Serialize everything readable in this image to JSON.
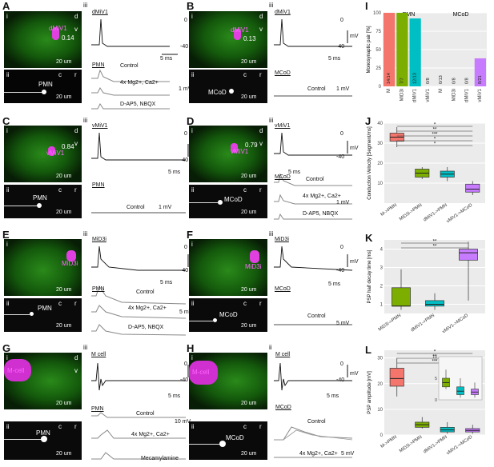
{
  "panels": {
    "A": {
      "letter": "A",
      "neuron": "dMiV1",
      "value": "0.14",
      "target": "PMN",
      "recording": "dMiV1",
      "trace_labels": [
        "Control",
        "4x Mg2+, Ca2+",
        "D-AP5, NBQX"
      ]
    },
    "B": {
      "letter": "B",
      "neuron": "dMiV1",
      "value": "0.13",
      "target": "MCoD",
      "recording": "dMiV1",
      "trace_labels": [
        "Control"
      ]
    },
    "C": {
      "letter": "C",
      "neuron": "vMiV1",
      "value": "0.84",
      "target": "PMN",
      "recording": "vMiV1",
      "trace_labels": [
        "Control"
      ]
    },
    "D": {
      "letter": "D",
      "neuron": "vMiV1",
      "value": "0.79",
      "target": "MCoD",
      "recording": "vMiV1",
      "trace_labels": [
        "Control",
        "4x Mg2+, Ca2+",
        "D-AP5, NBQX"
      ]
    },
    "E": {
      "letter": "E",
      "neuron": "MiD3i",
      "target": "PMN",
      "recording": "MiD3i",
      "trace_labels": [
        "Control",
        "4x Mg2+, Ca2+",
        "D-AP5, NBQX"
      ]
    },
    "F": {
      "letter": "F",
      "neuron": "MiD3i",
      "target": "MCoD",
      "recording": "MiD3i",
      "trace_labels": [
        "Control"
      ]
    },
    "G": {
      "letter": "G",
      "neuron": "M-cell",
      "target": "PMN",
      "recording": "M cell",
      "trace_labels": [
        "Control",
        "4x Mg2+, Ca2+",
        "Mecamylamine"
      ]
    },
    "H": {
      "letter": "H",
      "neuron": "M-cell",
      "target": "MCoD",
      "recording": "M cell",
      "trace_labels": [
        "Control",
        "4x Mg2+, Ca2+"
      ]
    }
  },
  "sublabels": {
    "i": "i",
    "ii": "ii",
    "iii": "iii"
  },
  "scale_text": {
    "um": "20 um",
    "mv": "mV",
    "ms5": "5 ms",
    "mv1": "1 mV",
    "mv5": "5 mV",
    "mv10": "10 mV",
    "zero": "0",
    "minus40": "-40",
    "axis_d": "d",
    "axis_v": "v",
    "axis_c": "c",
    "axis_r": "r"
  },
  "chart_data": [
    {
      "id": "I",
      "type": "bar",
      "ylabel": "Monosynaptic pair [%]",
      "ylim": [
        0,
        100
      ],
      "yticks": [
        0,
        25,
        50,
        75,
        100
      ],
      "group_labels": [
        "PMN",
        "MCoD"
      ],
      "categories": [
        "M",
        "MiD3i",
        "dMiV1",
        "vMiV1",
        "M",
        "MiD3i",
        "dMiV1",
        "vMiV1"
      ],
      "values": [
        100,
        100,
        92.3,
        0,
        0,
        0,
        0,
        38.1
      ],
      "bar_labels": [
        "14/14",
        "7/7",
        "12/13",
        "0/8",
        "0/13",
        "0/8",
        "0/8",
        "8/21"
      ],
      "colors": [
        "#f4756c",
        "#7cae00",
        "#00bfc4",
        "#00bfc4",
        "#f4756c",
        "#7cae00",
        "#c77cff",
        "#c77cff"
      ]
    },
    {
      "id": "J",
      "type": "box",
      "ylabel": "Conduction Velocity [Segment/ms]",
      "ylim": [
        0,
        40
      ],
      "yticks": [
        10,
        20,
        30,
        40
      ],
      "categories": [
        "M->PMN",
        "MiD3i->PMN",
        "dMiV1->PMN",
        "vMiV1->MCoD"
      ],
      "boxes": [
        {
          "min": 28,
          "q1": 31,
          "median": 33,
          "q3": 35,
          "max": 38,
          "color": "#f4756c"
        },
        {
          "min": 12,
          "q1": 13,
          "median": 15,
          "q3": 17,
          "max": 18,
          "color": "#7cae00"
        },
        {
          "min": 11,
          "q1": 13,
          "median": 14.5,
          "q3": 16,
          "max": 18,
          "color": "#00bfc4"
        },
        {
          "min": 4,
          "q1": 5.5,
          "median": 7,
          "q3": 9.5,
          "max": 11,
          "color": "#c77cff"
        }
      ],
      "significance": [
        "*",
        "**",
        "***",
        "*",
        "*"
      ]
    },
    {
      "id": "K",
      "type": "box",
      "ylabel": "PSP half decay time [ms]",
      "ylim": [
        0.5,
        4.5
      ],
      "yticks": [
        1,
        2,
        3,
        4
      ],
      "categories": [
        "MiD3i->PMN",
        "dMiV1->PMN",
        "vMiV1->MCoD"
      ],
      "boxes": [
        {
          "min": 0.7,
          "q1": 0.9,
          "median": 0.9,
          "q3": 1.9,
          "max": 2.9,
          "color": "#7cae00"
        },
        {
          "min": 0.7,
          "q1": 0.9,
          "median": 1.0,
          "q3": 1.2,
          "max": 1.6,
          "color": "#00bfc4"
        },
        {
          "min": 1.2,
          "q1": 3.4,
          "median": 3.8,
          "q3": 4.0,
          "max": 4.4,
          "color": "#c77cff"
        }
      ],
      "significance": [
        "**",
        "**"
      ]
    },
    {
      "id": "L",
      "type": "box",
      "ylabel": "PSP amplitude [mV]",
      "ylim": [
        0,
        33
      ],
      "yticks": [
        0,
        10,
        20,
        30
      ],
      "categories": [
        "M->PMN",
        "MiD3i->PMN",
        "dMiV1->PMN",
        "vMiV1->MCoD"
      ],
      "boxes": [
        {
          "min": 15,
          "q1": 19,
          "median": 22,
          "q3": 26,
          "max": 30,
          "color": "#f4756c"
        },
        {
          "min": 2.5,
          "q1": 3,
          "median": 4,
          "q3": 5,
          "max": 7,
          "color": "#7cae00"
        },
        {
          "min": 0.5,
          "q1": 1.2,
          "median": 2,
          "q3": 3,
          "max": 5,
          "color": "#00bfc4"
        },
        {
          "min": 0.5,
          "q1": 1.2,
          "median": 1.8,
          "q3": 2.5,
          "max": 4,
          "color": "#c77cff"
        }
      ],
      "inset": {
        "ylim": [
          0,
          10
        ],
        "yticks": [
          0,
          5,
          10
        ],
        "boxes": [
          {
            "min": 2.5,
            "q1": 3,
            "median": 4,
            "q3": 5,
            "max": 7,
            "color": "#7cae00"
          },
          {
            "min": 0.5,
            "q1": 1.2,
            "median": 2,
            "q3": 3,
            "max": 5,
            "color": "#00bfc4"
          },
          {
            "min": 0.5,
            "q1": 1.2,
            "median": 1.8,
            "q3": 2.5,
            "max": 4,
            "color": "#c77cff"
          }
        ]
      },
      "significance": [
        "*",
        "**",
        "***"
      ]
    }
  ]
}
